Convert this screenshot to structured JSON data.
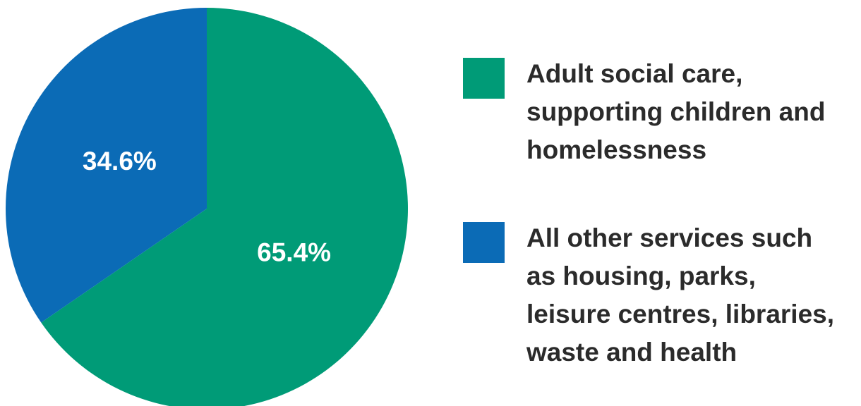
{
  "chart_data": {
    "type": "pie",
    "slices": [
      {
        "label": "Adult social care, supporting children and homelessness",
        "value": 65.4,
        "display": "65.4%",
        "color": "#009B77"
      },
      {
        "label": "All other services such as housing, parks, leisure centres, libraries, waste and health",
        "value": 34.6,
        "display": "34.6%",
        "color": "#0B6BB6"
      }
    ],
    "legend_placement": "right"
  },
  "legend": {
    "items": [
      {
        "lines": [
          "Adult social care,",
          "supporting children and",
          "homelessness"
        ],
        "color": "#009B77"
      },
      {
        "lines": [
          "All other services such",
          "as housing, parks,",
          "leisure centres, libraries,",
          "waste and health"
        ],
        "color": "#0B6BB6"
      }
    ]
  }
}
